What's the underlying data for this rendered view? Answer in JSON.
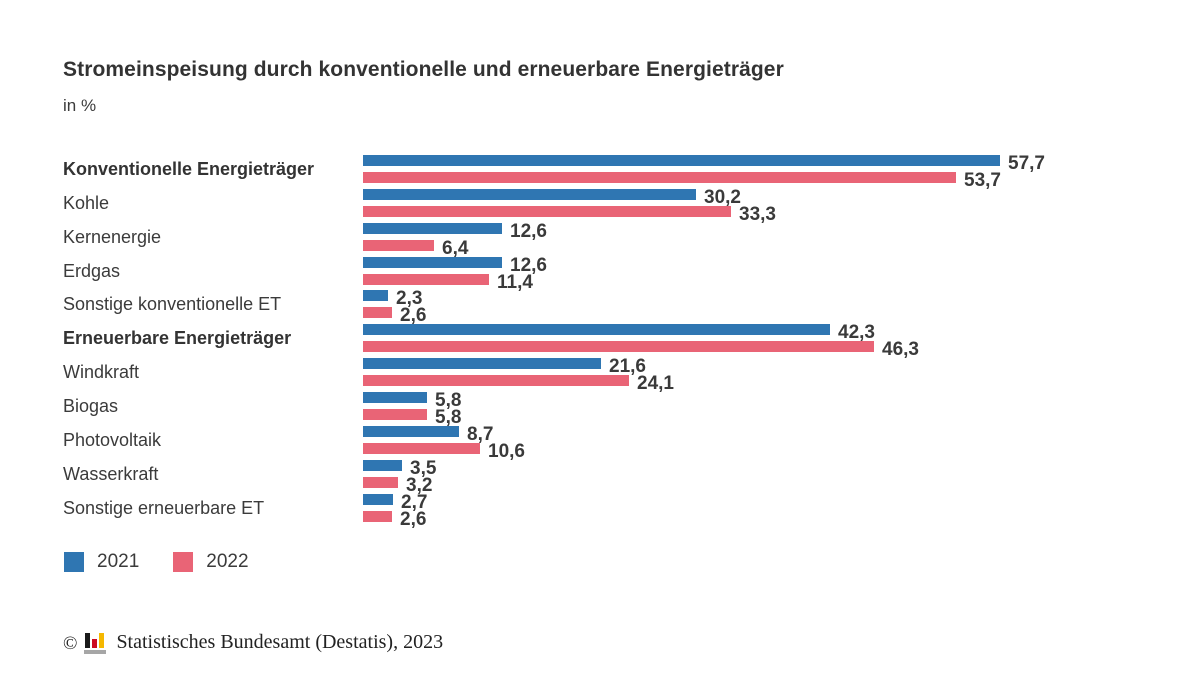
{
  "title": "Stromeinspeisung durch konventionelle und erneuerbare Energieträger",
  "subtitle": "in %",
  "colors": {
    "series_2021": "#2f76b2",
    "series_2022": "#e96476",
    "text": "#3b3b3b",
    "logo_black": "#1a1a1a",
    "logo_red": "#cc0a22",
    "logo_gold": "#f5b800",
    "logo_base_gray": "#a6a6a6"
  },
  "chart_data": {
    "type": "bar",
    "orientation": "horizontal",
    "title": "Stromeinspeisung durch konventionelle und erneuerbare Energieträger",
    "unit_label": "in %",
    "value_format": "german-decimal-comma",
    "xlim": [
      0,
      60
    ],
    "grid": false,
    "legend_position": "bottom-left",
    "categories": [
      {
        "label": "Konventionelle Energieträger",
        "bold": true
      },
      {
        "label": "Kohle",
        "bold": false
      },
      {
        "label": "Kernenergie",
        "bold": false
      },
      {
        "label": "Erdgas",
        "bold": false
      },
      {
        "label": "Sonstige konventionelle ET",
        "bold": false
      },
      {
        "label": "Erneuerbare Energieträger",
        "bold": true
      },
      {
        "label": "Windkraft",
        "bold": false
      },
      {
        "label": "Biogas",
        "bold": false
      },
      {
        "label": "Photovoltaik",
        "bold": false
      },
      {
        "label": "Wasserkraft",
        "bold": false
      },
      {
        "label": "Sonstige erneuerbare ET",
        "bold": false
      }
    ],
    "series": [
      {
        "name": "2021",
        "color": "#2f76b2",
        "values": [
          57.7,
          30.2,
          12.6,
          12.6,
          2.3,
          42.3,
          21.6,
          5.8,
          8.7,
          3.5,
          2.7
        ]
      },
      {
        "name": "2022",
        "color": "#e96476",
        "values": [
          53.7,
          33.3,
          6.4,
          11.4,
          2.6,
          46.3,
          24.1,
          5.8,
          10.6,
          3.2,
          2.6
        ]
      }
    ]
  },
  "legend": [
    {
      "label": "2021",
      "color": "#2f76b2"
    },
    {
      "label": "2022",
      "color": "#e96476"
    }
  ],
  "footer": {
    "copyright_symbol": "©",
    "source": "Statistisches Bundesamt (Destatis), 2023"
  },
  "icons": {
    "destatis_logo": "bar-chart-logo"
  }
}
